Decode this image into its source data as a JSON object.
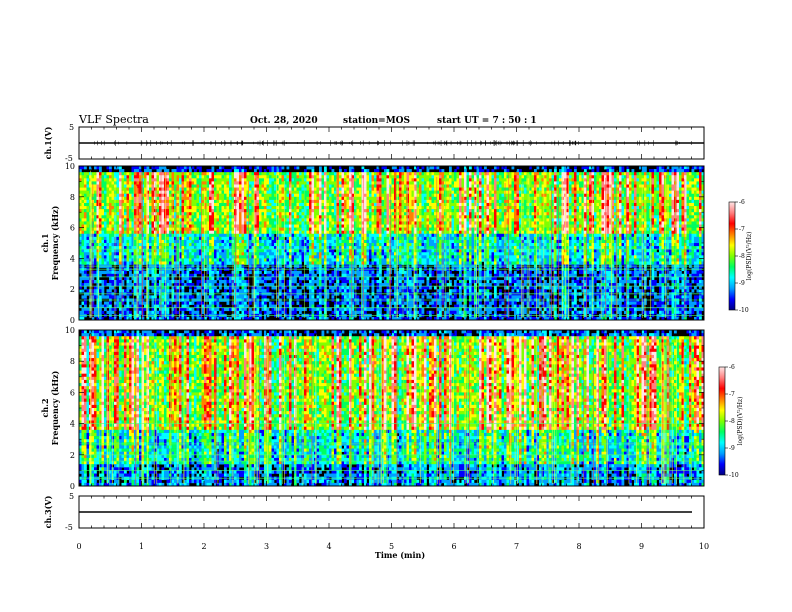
{
  "header": {
    "title": "VLF Spectra",
    "date": "Oct. 28, 2020",
    "station": "station=MOS",
    "start": "start  UT  =   7 : 50 : 1"
  },
  "chart_data": [
    {
      "type": "line",
      "name": "ch1-waveform",
      "ylabel": "ch.1(V)",
      "ylim": [
        -5,
        5
      ],
      "yticks": [
        "5",
        "-5"
      ],
      "x": [
        0,
        10
      ],
      "y": [
        0,
        0
      ]
    },
    {
      "type": "heatmap",
      "name": "ch1-spectrogram",
      "ylabel": "Frequency (kHz)",
      "channel": "ch.1",
      "ylim": [
        0,
        10
      ],
      "yticks": [
        "0",
        "2",
        "4",
        "6",
        "8",
        "10"
      ],
      "colorbar": {
        "label": "log(PSD)(V²/Hz)",
        "range": [
          -10,
          -6
        ],
        "ticks": [
          "-6",
          "-7",
          "-8",
          "-9",
          "-10"
        ]
      }
    },
    {
      "type": "heatmap",
      "name": "ch2-spectrogram",
      "ylabel": "Frequency (kHz)",
      "channel": "ch.2",
      "ylim": [
        0,
        10
      ],
      "yticks": [
        "0",
        "2",
        "4",
        "6",
        "8",
        "10"
      ],
      "colorbar": {
        "label": "log(PSD)(V²/Hz)",
        "range": [
          -10,
          -6
        ],
        "ticks": [
          "-6",
          "-7",
          "-8",
          "-9",
          "-10"
        ]
      }
    },
    {
      "type": "line",
      "name": "ch3-waveform",
      "ylabel": "ch.3(V)",
      "ylim": [
        -5,
        5
      ],
      "yticks": [
        "5",
        "-5"
      ],
      "x": [
        0,
        10
      ],
      "y": [
        0,
        0
      ]
    }
  ],
  "xaxis": {
    "label": "Time (min)",
    "xlim": [
      0,
      10
    ],
    "ticks": [
      "0",
      "1",
      "2",
      "3",
      "4",
      "5",
      "6",
      "7",
      "8",
      "9",
      "10"
    ]
  },
  "colors": {
    "colormap": [
      "#000080",
      "#0000ff",
      "#00a0ff",
      "#00ffff",
      "#00ff60",
      "#80ff00",
      "#ffff00",
      "#ff8000",
      "#ff0000",
      "#ff8080",
      "#ffe6e6"
    ]
  }
}
